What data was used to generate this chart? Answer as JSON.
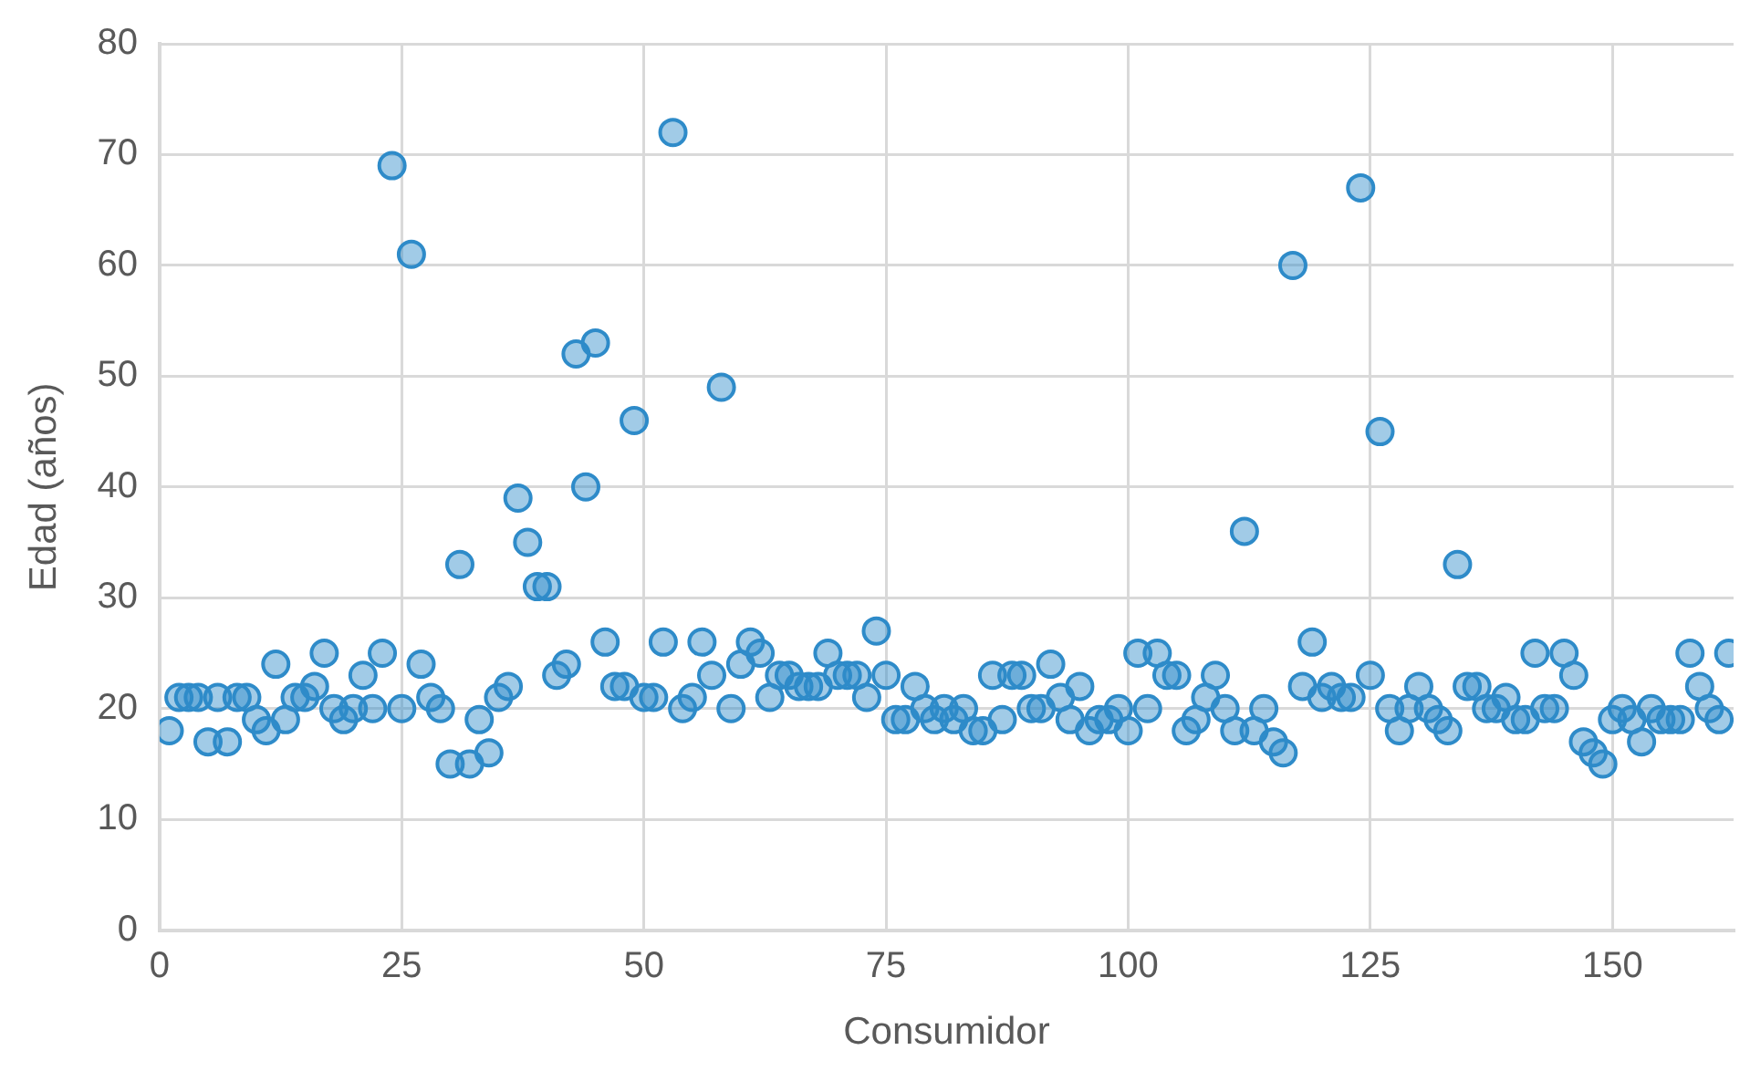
{
  "chart_data": {
    "type": "scatter",
    "xlabel": "Consumidor",
    "ylabel": "Edad (años)",
    "x": [
      1,
      2,
      3,
      4,
      5,
      6,
      7,
      8,
      9,
      10,
      11,
      12,
      13,
      14,
      15,
      16,
      17,
      18,
      19,
      20,
      21,
      22,
      23,
      24,
      25,
      26,
      27,
      28,
      29,
      30,
      31,
      32,
      33,
      34,
      35,
      36,
      37,
      38,
      39,
      40,
      41,
      42,
      43,
      44,
      45,
      46,
      47,
      48,
      49,
      50,
      51,
      52,
      53,
      54,
      55,
      56,
      57,
      58,
      59,
      60,
      61,
      62,
      63,
      64,
      65,
      66,
      67,
      68,
      69,
      70,
      71,
      72,
      73,
      74,
      75,
      76,
      77,
      78,
      79,
      80,
      81,
      82,
      83,
      84,
      85,
      86,
      87,
      88,
      89,
      90,
      91,
      92,
      93,
      94,
      95,
      96,
      97,
      98,
      99,
      100,
      101,
      102,
      103,
      104,
      105,
      106,
      107,
      108,
      109,
      110,
      111,
      112,
      113,
      114,
      115,
      116,
      117,
      118,
      119,
      120,
      121,
      122,
      123,
      124,
      125,
      126,
      127,
      128,
      129,
      130,
      131,
      132,
      133,
      134,
      135,
      136,
      137,
      138,
      139,
      140,
      141,
      142,
      143,
      144,
      145,
      146,
      147,
      148,
      149,
      150,
      151,
      152,
      153,
      154,
      155,
      156,
      157,
      158,
      159,
      160,
      161,
      162
    ],
    "values": [
      18,
      21,
      21,
      21,
      17,
      21,
      17,
      21,
      21,
      19,
      18,
      24,
      19,
      21,
      21,
      22,
      25,
      20,
      19,
      20,
      23,
      20,
      25,
      69,
      20,
      61,
      24,
      21,
      20,
      15,
      33,
      15,
      19,
      16,
      21,
      22,
      39,
      35,
      31,
      31,
      23,
      24,
      52,
      40,
      53,
      26,
      22,
      22,
      46,
      21,
      21,
      26,
      72,
      20,
      21,
      26,
      23,
      49,
      20,
      24,
      26,
      25,
      21,
      23,
      23,
      22,
      22,
      22,
      25,
      23,
      23,
      23,
      21,
      27,
      23,
      19,
      19,
      22,
      20,
      19,
      20,
      19,
      20,
      18,
      18,
      23,
      19,
      23,
      23,
      20,
      20,
      24,
      21,
      19,
      22,
      18,
      19,
      19,
      20,
      18,
      25,
      20,
      25,
      23,
      23,
      18,
      19,
      21,
      23,
      20,
      18,
      36,
      18,
      20,
      17,
      16,
      60,
      22,
      26,
      21,
      22,
      21,
      21,
      67,
      23,
      45,
      20,
      18,
      20,
      22,
      20,
      19,
      18,
      33,
      22,
      22,
      20,
      20,
      21,
      19,
      19,
      25,
      20,
      20,
      25,
      23,
      17,
      16,
      15,
      19,
      20,
      19,
      17,
      20,
      19,
      19,
      19,
      25,
      22,
      20,
      19,
      25
    ],
    "color": "#2e8bc9",
    "marker": "circle",
    "grid": true,
    "xlim": [
      0,
      162.5
    ],
    "xticks": [
      0,
      25,
      50,
      75,
      100,
      125,
      150
    ],
    "ylim": [
      0,
      80
    ],
    "yticks": [
      0,
      10,
      20,
      30,
      40,
      50,
      60,
      70,
      80
    ]
  }
}
